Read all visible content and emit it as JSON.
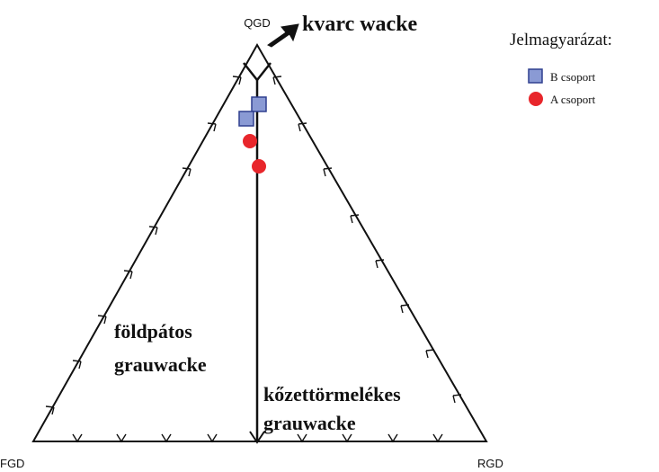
{
  "vertices": {
    "top": "QGD",
    "left": "FGD",
    "right": "RGD"
  },
  "fields": {
    "quartz": "kvarc wacke",
    "feldspar_line1": "földpátos",
    "feldspar_line2": "grauwacke",
    "lithic_line1": "kőzettörmelékes",
    "lithic_line2": "grauwacke"
  },
  "legend": {
    "title": "Jelmagyarázat:",
    "items": [
      {
        "label": "B csoport",
        "marker": "square",
        "fill": "#8a9ad4",
        "stroke": "#2f3f8f"
      },
      {
        "label": "A csoport",
        "marker": "circle",
        "fill": "#e8262b",
        "stroke": "#e8262b"
      }
    ]
  },
  "colors": {
    "line": "#111111",
    "arrow": "#111111"
  }
}
